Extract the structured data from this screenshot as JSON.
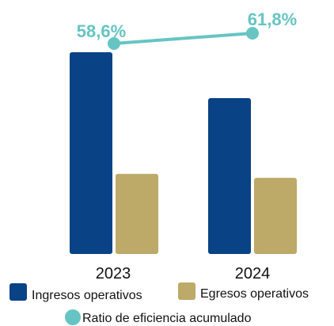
{
  "chart_data": {
    "type": "bar",
    "categories": [
      "2023",
      "2024"
    ],
    "series": [
      {
        "name": "Ingresos operativos",
        "values": [
          100,
          77
        ]
      },
      {
        "name": "Egresos operativos",
        "values": [
          39,
          37
        ]
      }
    ],
    "line_series": {
      "name": "Ratio de eficiencia acumulado",
      "values": [
        58.6,
        61.8
      ],
      "labels": [
        "58,6%",
        "61,8%"
      ]
    },
    "ylim": [
      0,
      100
    ],
    "grid": false,
    "legend_placement": "bottom",
    "colors": {
      "ingresos": "#0A4286",
      "egresos": "#BDA968",
      "ratio": "#66C5C3"
    }
  }
}
